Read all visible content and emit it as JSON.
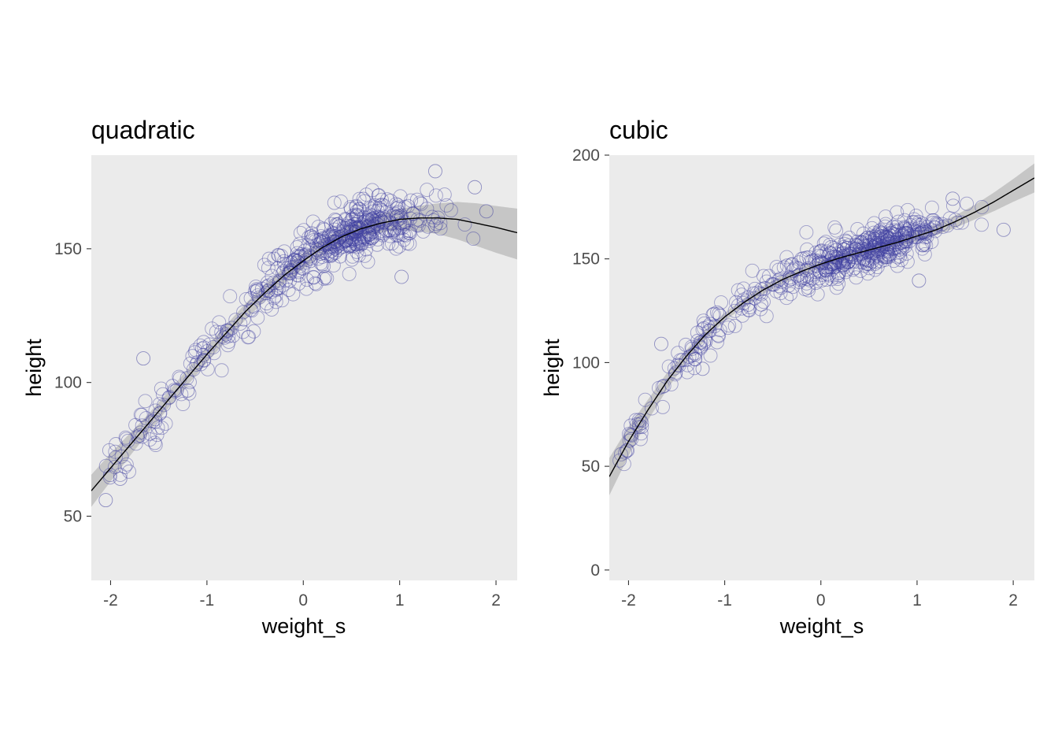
{
  "chart_data": [
    {
      "type": "scatter",
      "title": "quadratic",
      "xlabel": "weight_s",
      "ylabel": "height",
      "xlim": [
        -2.2,
        2.22
      ],
      "ylim": [
        26,
        185
      ],
      "xticks": [
        -2,
        -1,
        0,
        1,
        2
      ],
      "xtick_labels": [
        "-2",
        "-1",
        "0",
        "1",
        "2"
      ],
      "yticks": [
        50,
        100,
        150
      ],
      "ytick_labels": [
        "50",
        "100",
        "150"
      ],
      "grid": false,
      "background_color": "#ebebeb",
      "point_color": "#3f3f9f",
      "line_color": "#000000",
      "band_color": "#c6c6c6",
      "fit": {
        "x": [
          -2.2,
          -2.0,
          -1.8,
          -1.6,
          -1.4,
          -1.2,
          -1.0,
          -0.8,
          -0.6,
          -0.4,
          -0.2,
          0.0,
          0.2,
          0.4,
          0.6,
          0.8,
          1.0,
          1.2,
          1.4,
          1.6,
          1.8,
          2.0,
          2.22
        ],
        "y": [
          59.5,
          68.0,
          76.5,
          85.0,
          93.5,
          102.0,
          110.5,
          118.5,
          126.5,
          133.5,
          140.0,
          145.5,
          150.5,
          154.5,
          157.5,
          159.5,
          161.0,
          161.5,
          161.5,
          161.0,
          159.5,
          158.0,
          156.0
        ],
        "lower": [
          53.5,
          63.0,
          72.5,
          81.5,
          90.5,
          99.0,
          107.5,
          115.5,
          123.5,
          130.5,
          137.0,
          142.5,
          147.5,
          151.5,
          154.5,
          156.0,
          157.0,
          156.5,
          155.5,
          153.5,
          151.0,
          148.5,
          146.0
        ],
        "upper": [
          65.5,
          73.5,
          81.0,
          88.5,
          96.5,
          105.0,
          113.5,
          121.5,
          129.5,
          136.5,
          143.0,
          148.5,
          153.5,
          157.5,
          160.5,
          163.0,
          165.0,
          166.0,
          167.0,
          167.5,
          167.0,
          166.0,
          165.0
        ]
      },
      "noise_sd": 5.2,
      "sample_points": [
        {
          "x": -2.05,
          "y": 56
        },
        {
          "x": -1.9,
          "y": 64
        },
        {
          "x": -1.66,
          "y": 109
        },
        {
          "x": -1.2,
          "y": 97
        },
        {
          "x": -0.8,
          "y": 118
        },
        {
          "x": 1.02,
          "y": 139.5
        },
        {
          "x": 1.37,
          "y": 179
        },
        {
          "x": 1.78,
          "y": 173
        },
        {
          "x": 1.9,
          "y": 164
        }
      ]
    },
    {
      "type": "scatter",
      "title": "cubic",
      "xlabel": "weight_s",
      "ylabel": "height",
      "xlim": [
        -2.2,
        2.22
      ],
      "ylim": [
        -5,
        200
      ],
      "xticks": [
        -2,
        -1,
        0,
        1,
        2
      ],
      "xtick_labels": [
        "-2",
        "-1",
        "0",
        "1",
        "2"
      ],
      "yticks": [
        0,
        50,
        100,
        150,
        200
      ],
      "ytick_labels": [
        "0",
        "50",
        "100",
        "150",
        "200"
      ],
      "grid": false,
      "background_color": "#ebebeb",
      "point_color": "#3f3f9f",
      "line_color": "#000000",
      "band_color": "#c6c6c6",
      "fit": {
        "x": [
          -2.2,
          -2.0,
          -1.8,
          -1.6,
          -1.4,
          -1.2,
          -1.0,
          -0.8,
          -0.6,
          -0.4,
          -0.2,
          0.0,
          0.2,
          0.4,
          0.6,
          0.8,
          1.0,
          1.2,
          1.4,
          1.6,
          1.8,
          2.0,
          2.22
        ],
        "y": [
          45.0,
          62.0,
          77.0,
          91.0,
          103.0,
          113.5,
          122.0,
          129.0,
          135.0,
          140.0,
          144.0,
          147.5,
          150.5,
          153.0,
          155.5,
          158.0,
          161.0,
          164.0,
          168.0,
          172.5,
          177.5,
          183.0,
          189.0
        ],
        "lower": [
          36.0,
          55.0,
          72.0,
          87.0,
          100.0,
          111.0,
          120.0,
          127.0,
          133.0,
          138.0,
          142.0,
          145.5,
          148.5,
          151.0,
          153.5,
          156.0,
          158.5,
          161.5,
          165.0,
          169.0,
          173.0,
          177.5,
          182.0
        ],
        "upper": [
          54.0,
          69.0,
          82.0,
          95.0,
          106.0,
          116.0,
          124.0,
          131.0,
          137.0,
          142.0,
          146.0,
          149.5,
          152.5,
          155.0,
          157.5,
          160.0,
          163.5,
          166.5,
          171.0,
          176.0,
          182.0,
          188.5,
          196.0
        ]
      },
      "noise_sd": 5.0,
      "sample_points": [
        {
          "x": -1.66,
          "y": 109
        },
        {
          "x": -1.23,
          "y": 97
        },
        {
          "x": -0.62,
          "y": 128
        },
        {
          "x": 1.02,
          "y": 139.5
        },
        {
          "x": 1.37,
          "y": 179
        },
        {
          "x": 1.9,
          "y": 164
        }
      ]
    }
  ]
}
